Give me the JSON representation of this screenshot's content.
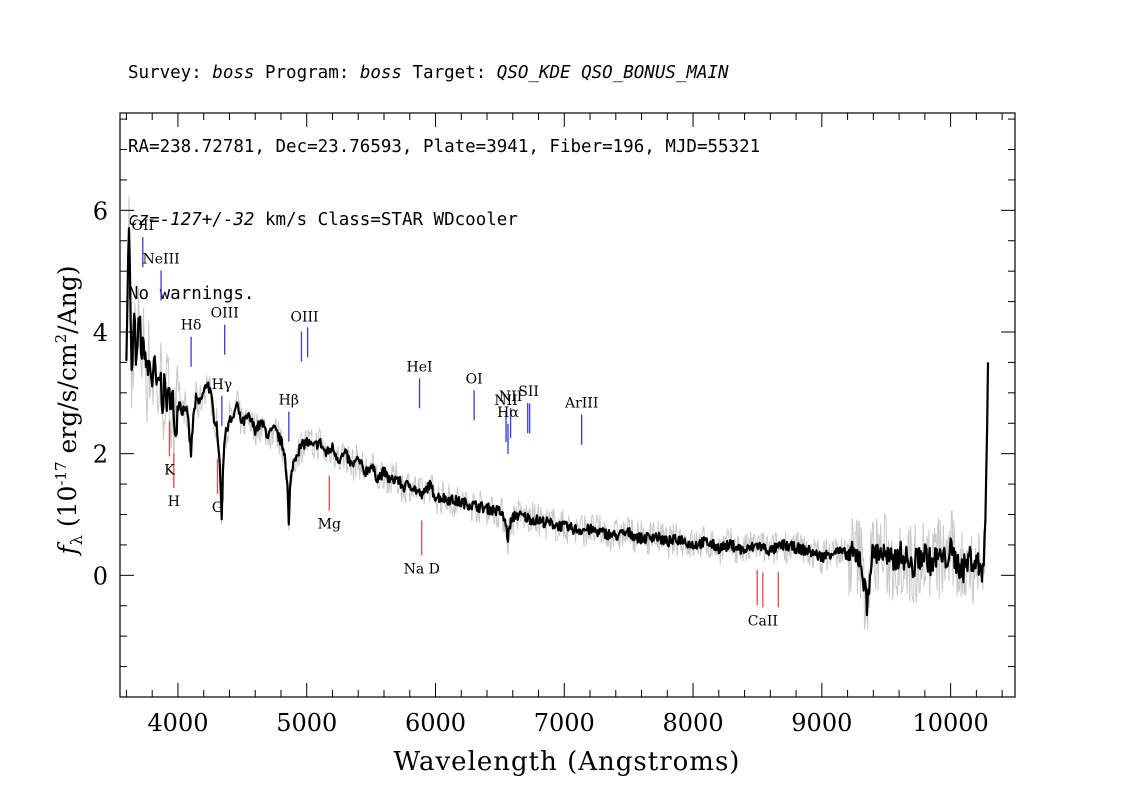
{
  "header": {
    "line1": [
      {
        "t": "Survey: ",
        "i": false
      },
      {
        "t": "boss",
        "i": true
      },
      {
        "t": " Program: ",
        "i": false
      },
      {
        "t": "boss",
        "i": true
      },
      {
        "t": " Target: ",
        "i": false
      },
      {
        "t": "QSO_KDE QSO_BONUS_MAIN",
        "i": true
      }
    ],
    "line2": "RA=238.72781, Dec=23.76593, Plate=3941, Fiber=196, MJD=55321",
    "line3": [
      {
        "t": "cz=-127+/-32",
        "i": true
      },
      {
        "t": " km/s Class=STAR WDcooler",
        "i": false
      }
    ],
    "line4": "No warnings."
  },
  "chart_data": {
    "type": "line",
    "xlabel": "Wavelength (Angstroms)",
    "ylabel_parts": {
      "sym": "f",
      "sub": "λ",
      "pre": " (10",
      "exp1": "-17",
      "mid": " erg/s/cm",
      "exp2": "2",
      "post": "/Ang)"
    },
    "xlim": [
      3550,
      10500
    ],
    "ylim": [
      -2.0,
      7.6
    ],
    "xticks": [
      4000,
      5000,
      6000,
      7000,
      8000,
      9000,
      10000
    ],
    "yticks": [
      0,
      2,
      4,
      6
    ],
    "xminor_step": 200,
    "yminor_step": 0.5,
    "colors": {
      "flux": "#000000",
      "error": "#c8c8c8",
      "emission": "#3a3ad6",
      "absorption": "#e04a4a"
    },
    "series": [
      {
        "role": "flux",
        "x": [
          3600,
          3620,
          3640,
          3660,
          3680,
          3700,
          3720,
          3740,
          3760,
          3780,
          3800,
          3820,
          3840,
          3860,
          3880,
          3900,
          3920,
          3940,
          3960,
          3970,
          3990,
          4010,
          4030,
          4060,
          4080,
          4101,
          4120,
          4140,
          4160,
          4180,
          4200,
          4230,
          4260,
          4280,
          4300,
          4320,
          4330,
          4340,
          4345,
          4350,
          4360,
          4380,
          4400,
          4420,
          4440,
          4460,
          4480,
          4500,
          4550,
          4600,
          4650,
          4700,
          4750,
          4800,
          4830,
          4850,
          4861,
          4870,
          4890,
          4920,
          4950,
          5000,
          5050,
          5100,
          5150,
          5200,
          5250,
          5300,
          5350,
          5400,
          5450,
          5500,
          5550,
          5600,
          5650,
          5700,
          5750,
          5800,
          5850,
          5900,
          5950,
          6000,
          6100,
          6200,
          6300,
          6400,
          6500,
          6540,
          6563,
          6580,
          6620,
          6700,
          6800,
          6900,
          7000,
          7100,
          7200,
          7300,
          7400,
          7500,
          7600,
          7700,
          7800,
          7900,
          8000,
          8100,
          8200,
          8300,
          8400,
          8500,
          8600,
          8700,
          8800,
          8900,
          9000,
          9100,
          9200,
          9300,
          9350,
          9380,
          9400,
          9450,
          9500,
          9550,
          9600,
          9650,
          9700,
          9750,
          9800,
          9850,
          9900,
          9950,
          10000,
          10050,
          10100,
          10150,
          10200,
          10250,
          10270,
          10290
        ],
        "y": [
          3.8,
          5.8,
          3.2,
          4.2,
          3.4,
          4.3,
          3.6,
          3.8,
          3.3,
          3.5,
          3.2,
          3.4,
          3.0,
          3.3,
          2.9,
          3.1,
          2.8,
          3.0,
          2.9,
          2.3,
          2.6,
          2.9,
          2.7,
          2.8,
          2.5,
          2.0,
          2.6,
          2.9,
          2.8,
          2.9,
          3.0,
          3.2,
          2.9,
          2.6,
          2.5,
          2.0,
          1.5,
          1.0,
          1.3,
          1.8,
          2.2,
          2.4,
          2.6,
          2.5,
          2.7,
          2.8,
          2.6,
          2.5,
          2.6,
          2.4,
          2.5,
          2.3,
          2.4,
          2.2,
          2.0,
          1.5,
          0.8,
          1.4,
          1.8,
          2.0,
          2.1,
          2.2,
          2.1,
          2.2,
          2.0,
          2.1,
          1.9,
          2.0,
          1.8,
          1.9,
          1.7,
          1.8,
          1.6,
          1.7,
          1.55,
          1.6,
          1.45,
          1.5,
          1.4,
          1.3,
          1.5,
          1.3,
          1.25,
          1.2,
          1.15,
          1.1,
          1.05,
          0.9,
          0.6,
          0.85,
          1.0,
          0.95,
          0.9,
          0.85,
          0.8,
          0.75,
          0.75,
          0.7,
          0.65,
          0.7,
          0.6,
          0.65,
          0.55,
          0.6,
          0.5,
          0.55,
          0.45,
          0.5,
          0.4,
          0.5,
          0.4,
          0.5,
          0.45,
          0.4,
          0.3,
          0.4,
          0.35,
          0.3,
          -0.5,
          0.2,
          0.35,
          0.4,
          0.3,
          0.2,
          0.35,
          0.3,
          0.1,
          0.3,
          0.35,
          0.2,
          0.3,
          0.25,
          0.4,
          0.2,
          0.1,
          0.3,
          0.2,
          0.1,
          0.7,
          3.5
        ]
      }
    ],
    "lines": [
      {
        "label": "OII",
        "x": 3727,
        "kind": "emission"
      },
      {
        "label": "NeIII",
        "x": 3869,
        "kind": "emission"
      },
      {
        "label": "Hδ",
        "x": 4102,
        "kind": "emission"
      },
      {
        "label": "Hγ",
        "x": 4341,
        "kind": "emission"
      },
      {
        "label": "OIII",
        "x": 4363,
        "kind": "emission"
      },
      {
        "label": "Hβ",
        "x": 4861,
        "kind": "emission"
      },
      {
        "label": "OIII",
        "x": 4959,
        "kind": "emission"
      },
      {
        "label": "OIII",
        "x": 5007,
        "kind": "emission"
      },
      {
        "label": "HeI",
        "x": 5876,
        "kind": "emission"
      },
      {
        "label": "OI",
        "x": 6300,
        "kind": "emission"
      },
      {
        "label": "NII",
        "x": 6548,
        "kind": "emission"
      },
      {
        "label": "Hα",
        "x": 6563,
        "kind": "emission"
      },
      {
        "label": "NII",
        "x": 6583,
        "kind": "emission"
      },
      {
        "label": "SII",
        "x": 6716,
        "kind": "emission"
      },
      {
        "label": "SII",
        "x": 6731,
        "kind": "emission"
      },
      {
        "label": "ArIII",
        "x": 7135,
        "kind": "emission"
      },
      {
        "label": "K",
        "x": 3934,
        "kind": "absorption"
      },
      {
        "label": "H",
        "x": 3968,
        "kind": "absorption"
      },
      {
        "label": "G",
        "x": 4307,
        "kind": "absorption"
      },
      {
        "label": "Mg",
        "x": 5175,
        "kind": "absorption"
      },
      {
        "label": "Na D",
        "x": 5893,
        "kind": "absorption"
      },
      {
        "label": "CaII",
        "x": 8498,
        "kind": "absorption"
      },
      {
        "label": "CaII",
        "x": 8542,
        "kind": "absorption"
      },
      {
        "label": "CaII",
        "x": 8662,
        "kind": "absorption"
      }
    ],
    "line_labels": [
      {
        "text": "OII",
        "x": 3727,
        "kind": "emission"
      },
      {
        "text": "NeIII",
        "x": 3869,
        "kind": "emission"
      },
      {
        "text": "Hδ",
        "x": 4102,
        "kind": "emission"
      },
      {
        "text": "Hγ",
        "x": 4341,
        "kind": "emission"
      },
      {
        "text": "OIII",
        "x": 4363,
        "kind": "emission"
      },
      {
        "text": "Hβ",
        "x": 4861,
        "kind": "emission"
      },
      {
        "text": "OIII",
        "x": 4983,
        "kind": "emission"
      },
      {
        "text": "HeI",
        "x": 5876,
        "kind": "emission"
      },
      {
        "text": "OI",
        "x": 6300,
        "kind": "emission"
      },
      {
        "text": "NII",
        "x": 6548,
        "kind": "emission"
      },
      {
        "text": "Hα",
        "x": 6563,
        "kind": "emission"
      },
      {
        "text": "SII",
        "x": 6723,
        "kind": "emission"
      },
      {
        "text": "NII",
        "x": 6583,
        "kind": "emission"
      },
      {
        "text": "ArIII",
        "x": 7135,
        "kind": "emission"
      },
      {
        "text": "K",
        "x": 3934,
        "kind": "absorption"
      },
      {
        "text": "H",
        "x": 3968,
        "kind": "absorption"
      },
      {
        "text": "G",
        "x": 4307,
        "kind": "absorption"
      },
      {
        "text": "Mg",
        "x": 5175,
        "kind": "absorption"
      },
      {
        "text": "Na D",
        "x": 5893,
        "kind": "absorption"
      },
      {
        "text": "CaII",
        "x": 8542,
        "kind": "absorption"
      }
    ]
  }
}
